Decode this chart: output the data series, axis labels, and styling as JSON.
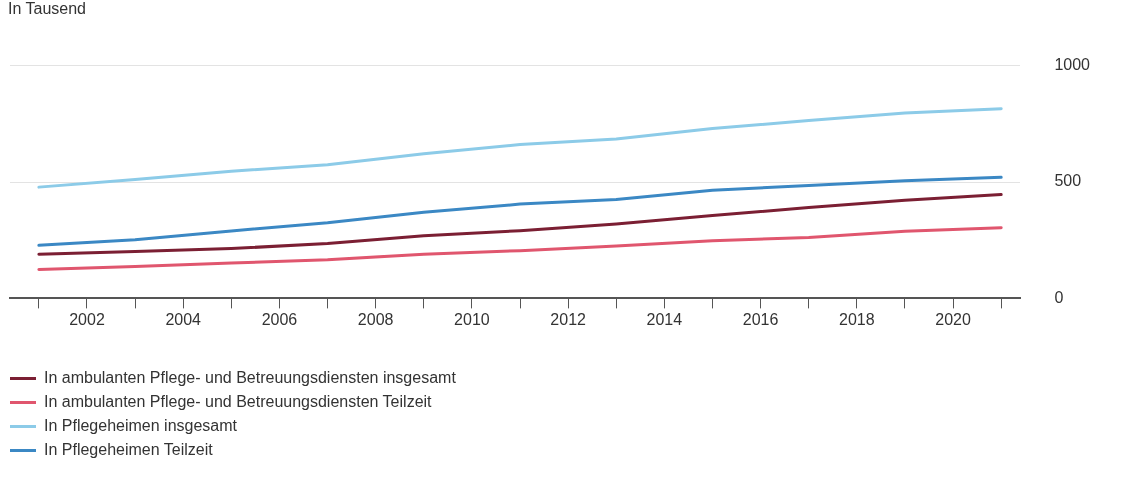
{
  "chart_data": {
    "type": "line",
    "ylabel": "In Tausend",
    "series": [
      {
        "name": "In ambulanten Pflege- und Betreuungsdiensten insgesamt",
        "color": "#7b1f33",
        "x": [
          2001,
          2003,
          2005,
          2007,
          2009,
          2011,
          2013,
          2015,
          2017,
          2019,
          2021
        ],
        "values": [
          190,
          201,
          214,
          236,
          269,
          291,
          320,
          356,
          390,
          422,
          446
        ]
      },
      {
        "name": "In ambulanten Pflege- und Betreuungsdiensten Teilzeit",
        "color": "#e0566e",
        "x": [
          2001,
          2003,
          2005,
          2007,
          2009,
          2011,
          2013,
          2015,
          2017,
          2019,
          2021
        ],
        "values": [
          124,
          137,
          152,
          166,
          190,
          205,
          225,
          248,
          262,
          288,
          304
        ]
      },
      {
        "name": "In Pflegeheimen insgesamt",
        "color": "#8ccbe8",
        "x": [
          2001,
          2003,
          2005,
          2007,
          2009,
          2011,
          2013,
          2015,
          2017,
          2019,
          2021
        ],
        "values": [
          478,
          511,
          546,
          574,
          621,
          661,
          685,
          730,
          764,
          796,
          815
        ]
      },
      {
        "name": "In Pflegeheimen Teilzeit",
        "color": "#3b88c4",
        "x": [
          2001,
          2003,
          2005,
          2007,
          2009,
          2011,
          2013,
          2015,
          2017,
          2019,
          2021
        ],
        "values": [
          228,
          252,
          290,
          325,
          370,
          405,
          425,
          465,
          485,
          505,
          520
        ]
      }
    ],
    "xlim": [
      2000.4,
      2021.4
    ],
    "xticks": [
      {
        "value": 2001,
        "label": null
      },
      2002,
      {
        "value": 2003,
        "label": null
      },
      2004,
      {
        "value": 2005,
        "label": null
      },
      2006,
      {
        "value": 2007,
        "label": null
      },
      2008,
      {
        "value": 2009,
        "label": null
      },
      2010,
      {
        "value": 2011,
        "label": null
      },
      2012,
      {
        "value": 2013,
        "label": null
      },
      2014,
      {
        "value": 2015,
        "label": null
      },
      2016,
      {
        "value": 2017,
        "label": null
      },
      2018,
      {
        "value": 2019,
        "label": null
      },
      2020,
      {
        "value": 2021,
        "label": null
      }
    ],
    "ylim": [
      0,
      1000
    ],
    "yticks": [
      0,
      500,
      1000
    ],
    "grid": "y",
    "legend": "bottom",
    "marker": "none",
    "line_style": "solid"
  }
}
